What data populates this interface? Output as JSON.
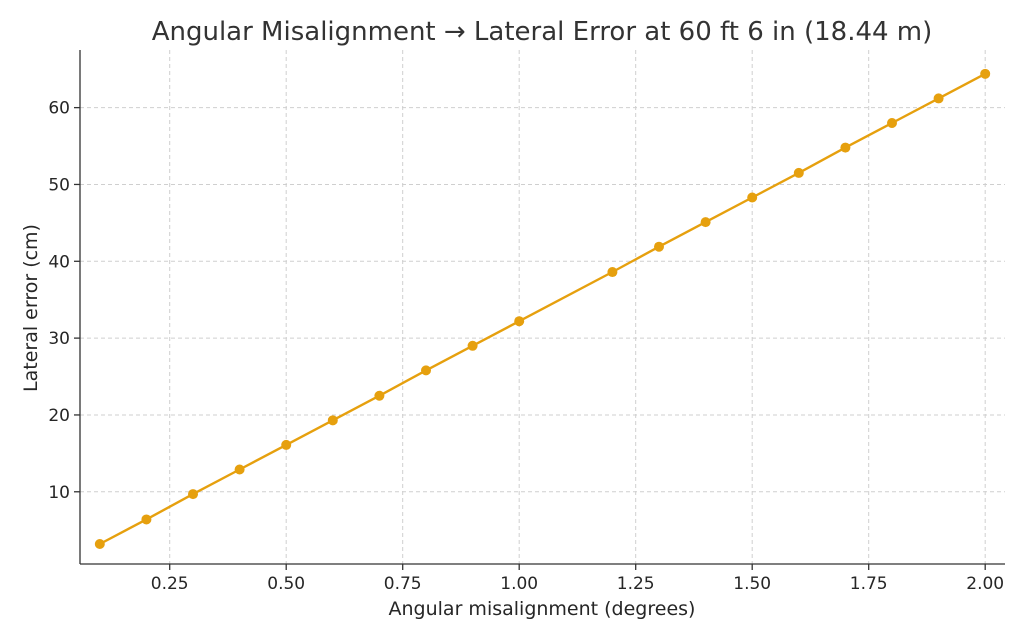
{
  "chart_data": {
    "type": "line",
    "title": "Angular Misalignment → Lateral Error at 60 ft 6 in (18.44 m)",
    "xlabel": "Angular misalignment (degrees)",
    "ylabel": "Lateral error (cm)",
    "xlim": [
      0.0575,
      2.0425
    ],
    "ylim": [
      0.6,
      67.5
    ],
    "xticks": [
      0.25,
      0.5,
      0.75,
      1.0,
      1.25,
      1.5,
      1.75,
      2.0
    ],
    "xtick_labels": [
      "0.25",
      "0.50",
      "0.75",
      "1.00",
      "1.25",
      "1.50",
      "1.75",
      "2.00"
    ],
    "yticks": [
      10,
      20,
      30,
      40,
      50,
      60
    ],
    "ytick_labels": [
      "10",
      "20",
      "30",
      "40",
      "50",
      "60"
    ],
    "grid": true,
    "series": [
      {
        "color": "#e6a00e",
        "marker": "circle",
        "x": [
          0.1,
          0.2,
          0.3,
          0.4,
          0.5,
          0.6,
          0.7,
          0.8,
          0.9,
          1.0,
          1.2,
          1.3,
          1.4,
          1.5,
          1.6,
          1.7,
          1.8,
          1.9,
          2.0
        ],
        "y": [
          3.2,
          6.4,
          9.7,
          12.9,
          16.1,
          19.3,
          22.5,
          25.8,
          29.0,
          32.2,
          38.6,
          41.9,
          45.1,
          48.3,
          51.5,
          54.8,
          58.0,
          61.2,
          64.4
        ]
      }
    ]
  }
}
